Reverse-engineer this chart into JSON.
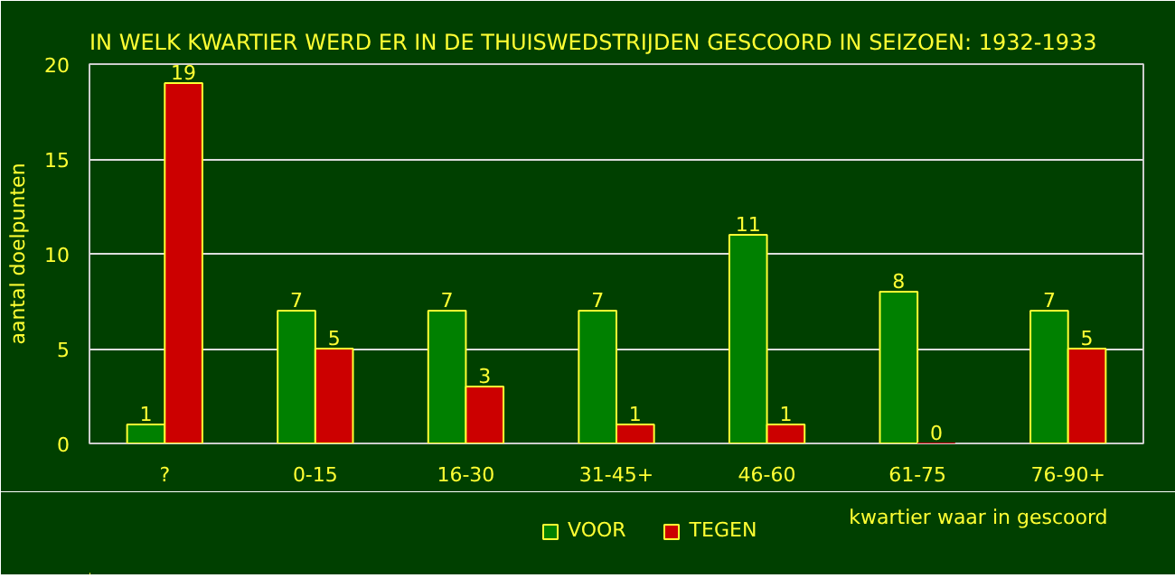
{
  "chart_data": {
    "type": "bar",
    "title": "IN WELK KWARTIER WERD ER IN DE THUISWEDSTRIJDEN GESCOORD IN SEIZOEN: 1932-1933",
    "xlabel": "kwartier waar in gescoord",
    "ylabel": "aantal doelpunten",
    "categories": [
      "?",
      "0-15",
      "16-30",
      "31-45+",
      "46-60",
      "61-75",
      "76-90+"
    ],
    "series": [
      {
        "name": "VOOR",
        "color": "#008000",
        "values": [
          1,
          7,
          7,
          7,
          11,
          8,
          7
        ]
      },
      {
        "name": "TEGEN",
        "color": "#cc0000",
        "values": [
          19,
          5,
          3,
          1,
          1,
          0,
          5
        ]
      }
    ],
    "ylim": [
      0,
      20
    ],
    "yticks": [
      0,
      5,
      10,
      15,
      20
    ],
    "grid": "y",
    "legend": "bottom",
    "data_labels": true
  }
}
